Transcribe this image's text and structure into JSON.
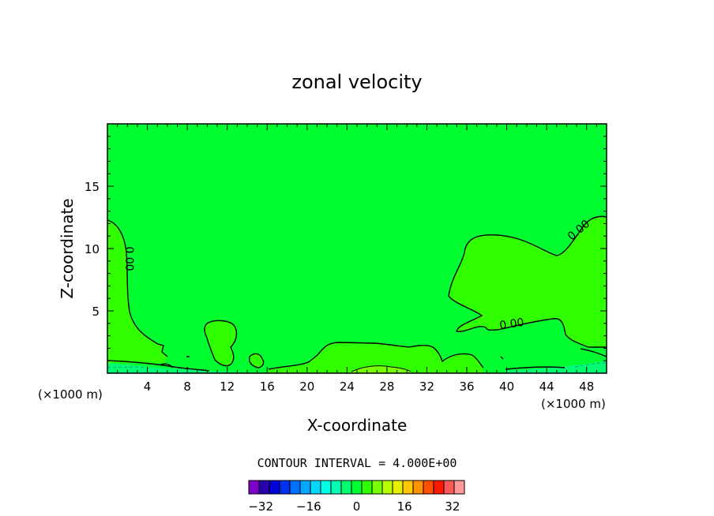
{
  "chart_data": {
    "type": "contour",
    "title": "zonal velocity",
    "xlabel": "X-coordinate",
    "ylabel": "Z-coordinate",
    "x_unit": "(×1000 m)",
    "z_unit": "(×1000 m)",
    "xlim": [
      0,
      50
    ],
    "ylim": [
      0,
      20
    ],
    "x_ticks": [
      4,
      8,
      12,
      16,
      20,
      24,
      28,
      32,
      36,
      40,
      44,
      48
    ],
    "y_ticks": [
      5,
      10,
      15
    ],
    "contour_interval_text": "CONTOUR INTERVAL = 4.000E+00",
    "contour_labels": [
      "0.00",
      "0.00",
      "0.00"
    ],
    "colorbar": {
      "min": -36,
      "max": 36,
      "step": 4,
      "tick_values": [
        -32,
        -16,
        0,
        16,
        32
      ],
      "tick_labels": [
        "−32",
        "−16",
        "0",
        "16",
        "32"
      ],
      "colors": [
        "#7f00c8",
        "#2a00b0",
        "#0000d8",
        "#0030f0",
        "#0070ff",
        "#00a8ff",
        "#00d8ff",
        "#00ffe8",
        "#00ffb0",
        "#00ff70",
        "#00ff30",
        "#30ff00",
        "#78ff00",
        "#b8ff00",
        "#e8f000",
        "#ffc800",
        "#ff9000",
        "#ff5000",
        "#ff1800",
        "#ff5858",
        "#ff9898"
      ]
    },
    "field_colors": {
      "background": "#00ff30",
      "positive_region": "#30ff00",
      "strong_positive": "#78ff00",
      "negative_region": "#00ff70"
    }
  }
}
